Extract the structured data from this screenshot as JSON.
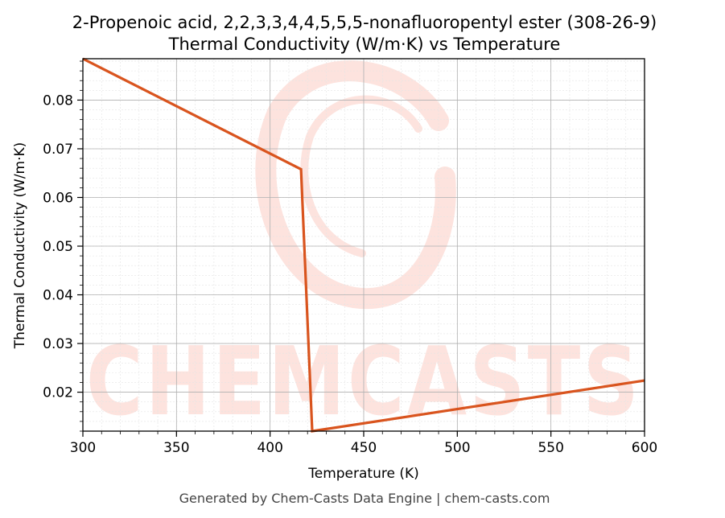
{
  "chart_data": {
    "type": "line",
    "title": "2-Propenoic acid, 2,2,3,3,4,4,5,5,5-nonafluoropentyl ester (308-26-9)",
    "subtitle": "Thermal Conductivity (W/m·K) vs Temperature",
    "xlabel": "Temperature (K)",
    "ylabel": "Thermal Conductivity (W/m·K)",
    "xlim": [
      300,
      600
    ],
    "ylim": [
      0.012,
      0.0885
    ],
    "xticks": [
      300,
      350,
      400,
      450,
      500,
      550,
      600
    ],
    "yticks": [
      0.02,
      0.03,
      0.04,
      0.05,
      0.06,
      0.07,
      0.08
    ],
    "xtick_labels": [
      "300",
      "350",
      "400",
      "450",
      "500",
      "550",
      "600"
    ],
    "ytick_labels": [
      "0.02",
      "0.03",
      "0.04",
      "0.05",
      "0.06",
      "0.07",
      "0.08"
    ],
    "grid": true,
    "series": [
      {
        "color": "#d9541e",
        "x": [
          300,
          416.5,
          422.5,
          600
        ],
        "y": [
          0.0885,
          0.0658,
          0.012,
          0.0224
        ]
      }
    ],
    "watermark": "CHEMCASTS",
    "footer": "Generated by Chem-Casts Data Engine | chem-casts.com"
  }
}
